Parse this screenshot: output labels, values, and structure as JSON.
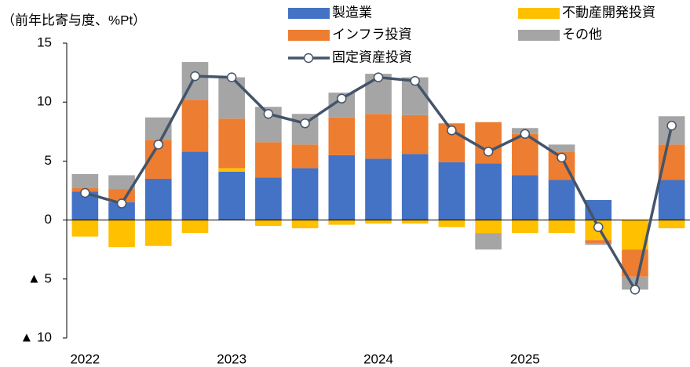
{
  "chart_data": {
    "type": "bar",
    "stacked": true,
    "y_label": "（前年比寄与度、%Pt）",
    "categories": [
      "2022",
      null,
      null,
      null,
      "2023",
      null,
      null,
      null,
      "2024",
      null,
      null,
      null,
      "2025",
      null,
      null,
      null,
      null
    ],
    "series": [
      {
        "name": "製造業",
        "color": "#4472c4",
        "values": [
          2.4,
          1.5,
          3.5,
          5.8,
          4.1,
          3.6,
          4.4,
          5.5,
          5.2,
          5.6,
          4.9,
          4.8,
          3.8,
          3.4,
          1.7,
          0,
          3.4
        ]
      },
      {
        "name": "不動産開発投資",
        "color": "#ffc000",
        "values": [
          -1.4,
          -2.3,
          -2.2,
          -1.1,
          0.3,
          -0.5,
          -0.7,
          -0.4,
          -0.3,
          -0.3,
          -0.6,
          -1.1,
          -1.1,
          -1.1,
          -1.7,
          -2.5,
          -0.7
        ]
      },
      {
        "name": "インフラ投資",
        "color": "#ed7d31",
        "values": [
          0.3,
          1.1,
          3.3,
          4.4,
          4.2,
          3.0,
          2.0,
          3.2,
          3.8,
          3.3,
          3.3,
          3.5,
          3.5,
          2.4,
          -0.3,
          -2.3,
          3.0
        ]
      },
      {
        "name": "その他",
        "color": "#a5a5a5",
        "values": [
          1.2,
          1.2,
          1.9,
          3.2,
          3.5,
          3.0,
          2.6,
          2.1,
          3.4,
          3.2,
          0,
          -1.4,
          0.5,
          0.6,
          -0.1,
          -1.1,
          2.4
        ]
      },
      {
        "name": "固定資産投資",
        "color": "#44546a",
        "type": "line",
        "values": [
          2.3,
          1.4,
          6.4,
          12.2,
          12.1,
          9.0,
          8.2,
          10.3,
          12.1,
          11.8,
          7.6,
          5.8,
          7.3,
          5.3,
          -0.6,
          -5.9,
          8.0
        ]
      }
    ],
    "ylim": [
      -10,
      15
    ],
    "yticks": [
      15,
      10,
      5,
      0,
      {
        "value": -5,
        "label": "▲ 5"
      },
      {
        "value": -10,
        "label": "▲ 10"
      }
    ],
    "grid": false
  }
}
